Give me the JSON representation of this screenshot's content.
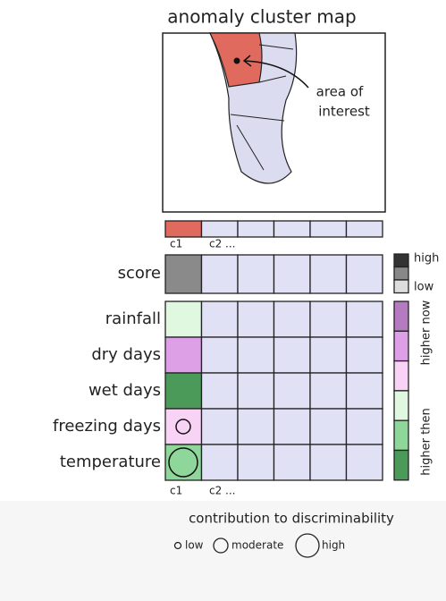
{
  "title": "anomaly cluster map",
  "annotation": [
    "area of",
    "interest"
  ],
  "clusters_top": [
    "c1",
    "c2 ..."
  ],
  "score_label": "score",
  "score_legend": [
    "high",
    "low"
  ],
  "rows": [
    "rainfall",
    "dry days",
    "wet days",
    "freezing days",
    "temperature"
  ],
  "clusters_bottom": [
    "c1",
    "c2 ..."
  ],
  "direction_legend": [
    "higher now",
    "higher then"
  ],
  "footer": {
    "title": "contribution to discriminability",
    "sizes": [
      "low",
      "moderate",
      "high"
    ]
  }
}
